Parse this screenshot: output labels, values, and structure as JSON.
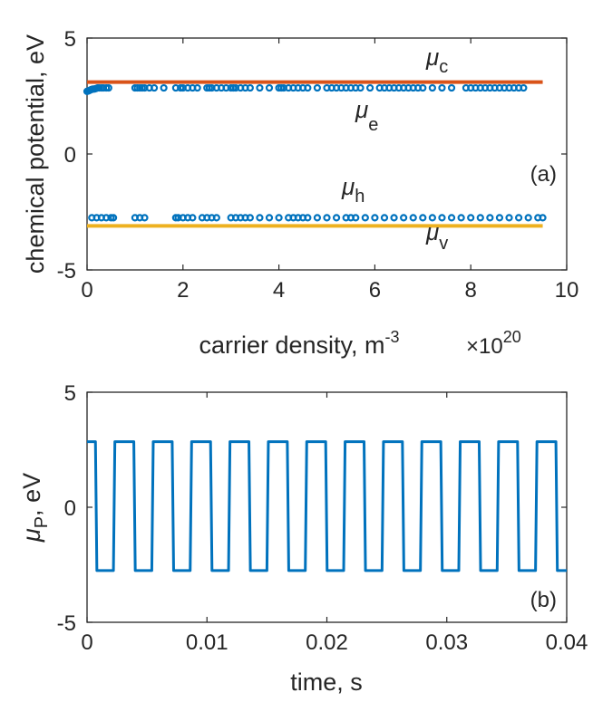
{
  "chart_data": [
    {
      "panel": "(a)",
      "type": "scatter",
      "xlabel": "carrier density, m",
      "xlabel_sup": "-3",
      "x_exponent_base": "×10",
      "x_exponent": "20",
      "ylabel": "chemical potential, eV",
      "xlim": [
        0,
        10
      ],
      "ylim": [
        -5,
        5
      ],
      "xticks": [
        "0",
        "2",
        "4",
        "6",
        "8",
        "10"
      ],
      "yticks": [
        "-5",
        "0",
        "5"
      ],
      "grid": false,
      "colors": {
        "mu_c": "#d95319",
        "mu_v": "#edb120",
        "points": "#0072bd"
      },
      "lines": [
        {
          "label": "μ",
          "sub": "c",
          "y": 3.1,
          "x": [
            0,
            9.5
          ]
        },
        {
          "label": "μ",
          "sub": "v",
          "y": -3.1,
          "x": [
            0,
            9.5
          ]
        }
      ],
      "series": [
        {
          "label": "μ",
          "sub": "e",
          "x": [
            0.0,
            0.03,
            0.06,
            0.09,
            0.12,
            0.15,
            0.18,
            0.22,
            0.25,
            0.3,
            0.34,
            0.4,
            0.45,
            1.0,
            1.05,
            1.1,
            1.15,
            1.2,
            1.3,
            1.4,
            1.6,
            1.85,
            1.95,
            2.0,
            2.1,
            2.2,
            2.3,
            2.5,
            2.55,
            2.6,
            2.7,
            2.8,
            2.9,
            3.0,
            3.05,
            3.1,
            3.2,
            3.3,
            3.4,
            3.6,
            3.8,
            4.0,
            4.05,
            4.1,
            4.2,
            4.3,
            4.4,
            4.5,
            4.6,
            4.8,
            5.0,
            5.1,
            5.2,
            5.3,
            5.4,
            5.5,
            5.6,
            5.7,
            5.9,
            6.1,
            6.2,
            6.3,
            6.4,
            6.5,
            6.6,
            6.7,
            6.8,
            6.9,
            7.0,
            7.2,
            7.4,
            7.6,
            7.9,
            8.0,
            8.1,
            8.2,
            8.3,
            8.4,
            8.5,
            8.6,
            8.7,
            8.8,
            8.9,
            9.0,
            9.1
          ],
          "y": [
            2.7,
            2.72,
            2.75,
            2.78,
            2.8,
            2.8,
            2.82,
            2.85,
            2.85,
            2.85,
            2.85,
            2.85,
            2.85,
            2.85,
            2.85,
            2.85,
            2.85,
            2.85,
            2.85,
            2.85,
            2.85,
            2.85,
            2.85,
            2.85,
            2.85,
            2.85,
            2.85,
            2.85,
            2.85,
            2.85,
            2.85,
            2.85,
            2.85,
            2.85,
            2.85,
            2.85,
            2.85,
            2.85,
            2.85,
            2.85,
            2.85,
            2.85,
            2.85,
            2.85,
            2.85,
            2.85,
            2.85,
            2.85,
            2.85,
            2.85,
            2.85,
            2.85,
            2.85,
            2.85,
            2.85,
            2.85,
            2.85,
            2.85,
            2.85,
            2.85,
            2.85,
            2.85,
            2.85,
            2.85,
            2.85,
            2.85,
            2.85,
            2.85,
            2.85,
            2.85,
            2.85,
            2.85,
            2.85,
            2.85,
            2.85,
            2.85,
            2.85,
            2.85,
            2.85,
            2.85,
            2.85,
            2.85,
            2.85,
            2.85,
            2.85
          ]
        },
        {
          "label": "μ",
          "sub": "h",
          "x": [
            0.1,
            0.2,
            0.3,
            0.4,
            0.5,
            0.55,
            1.0,
            1.1,
            1.2,
            1.85,
            1.9,
            2.0,
            2.1,
            2.2,
            2.4,
            2.5,
            2.6,
            2.7,
            3.0,
            3.1,
            3.2,
            3.3,
            3.4,
            3.6,
            3.8,
            4.0,
            4.2,
            4.3,
            4.4,
            4.5,
            4.6,
            4.8,
            5.0,
            5.2,
            5.4,
            5.5,
            5.6,
            5.8,
            6.0,
            6.2,
            6.4,
            6.6,
            6.8,
            7.0,
            7.2,
            7.4,
            7.6,
            7.8,
            8.0,
            8.2,
            8.4,
            8.6,
            8.8,
            9.0,
            9.2,
            9.4,
            9.5
          ],
          "y": [
            -2.75,
            -2.75,
            -2.75,
            -2.75,
            -2.75,
            -2.75,
            -2.75,
            -2.75,
            -2.75,
            -2.75,
            -2.75,
            -2.75,
            -2.75,
            -2.75,
            -2.75,
            -2.75,
            -2.75,
            -2.75,
            -2.75,
            -2.75,
            -2.75,
            -2.75,
            -2.75,
            -2.75,
            -2.75,
            -2.75,
            -2.75,
            -2.75,
            -2.75,
            -2.75,
            -2.75,
            -2.75,
            -2.75,
            -2.75,
            -2.75,
            -2.75,
            -2.75,
            -2.75,
            -2.75,
            -2.75,
            -2.75,
            -2.75,
            -2.75,
            -2.75,
            -2.75,
            -2.75,
            -2.75,
            -2.75,
            -2.75,
            -2.75,
            -2.75,
            -2.75,
            -2.75,
            -2.75,
            -2.75,
            -2.75,
            -2.75
          ]
        }
      ]
    },
    {
      "panel": "(b)",
      "type": "line",
      "xlabel": "time, s",
      "ylabel_mu": "μ",
      "ylabel_sub": "P",
      "ylabel_rest": ", eV",
      "xlim": [
        0,
        0.04
      ],
      "ylim": [
        -5,
        5
      ],
      "xticks": [
        "0",
        "0.01",
        "0.02",
        "0.03",
        "0.04"
      ],
      "yticks": [
        "-5",
        "0",
        "5"
      ],
      "grid": false,
      "color": "#0072bd",
      "square_wave": {
        "period": 0.0032,
        "high": 2.85,
        "low": -2.75,
        "first_fall": 0.0007,
        "low_duration": 0.0015,
        "end": 0.04
      }
    }
  ]
}
